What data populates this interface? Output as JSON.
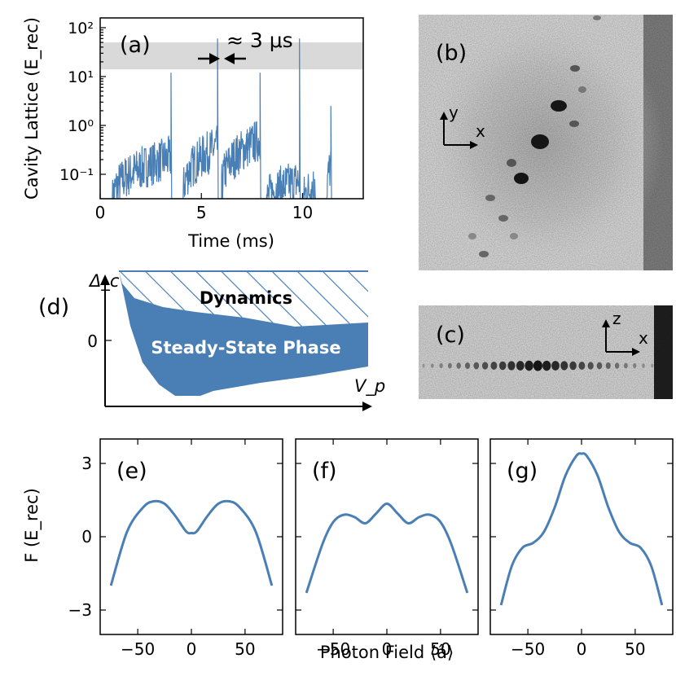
{
  "colors": {
    "accent": "#4a7fb5",
    "band": "#d9d9d9",
    "axis": "#000000"
  },
  "chart_data": [
    {
      "panel": "a",
      "type": "line",
      "panel_label": "(a)",
      "xlabel": "Time (ms)",
      "ylabel": "Cavity Lattice (E_rec)",
      "xlim": [
        0,
        13
      ],
      "ylim_log10": [
        -1.5,
        2.2
      ],
      "x_ticks": [
        0,
        5,
        10
      ],
      "x_tick_labels": [
        "0",
        "5",
        "10"
      ],
      "y_ticks_log10": [
        -1,
        0,
        1,
        2
      ],
      "y_tick_labels": [
        "10⁻¹",
        "10⁰",
        "10¹",
        "10²"
      ],
      "band_range": [
        14,
        50
      ],
      "annotation": "≈ 3 μs",
      "series": [
        {
          "name": "cavity lattice",
          "segments": [
            {
              "x_start": 0.6,
              "x_end": 3.5,
              "rise_from": 0.03,
              "rise_to": 0.3,
              "spike": 12
            },
            {
              "x_start": 4.1,
              "x_end": 5.8,
              "rise_from": 0.04,
              "rise_to": 0.5,
              "spike": 60
            },
            {
              "x_start": 6.0,
              "x_end": 7.9,
              "rise_from": 0.05,
              "rise_to": 0.7,
              "spike": 12
            },
            {
              "x_start": 8.2,
              "x_end": 9.85,
              "rise_from": 0.03,
              "rise_to": 0.1,
              "spike": 60
            },
            {
              "x_start": 10.0,
              "x_end": 10.6,
              "rise_from": 0.03,
              "rise_to": 0.08,
              "spike": 0.08
            },
            {
              "x_start": 11.2,
              "x_end": 11.4,
              "rise_from": 0.05,
              "rise_to": 0.2,
              "spike": 2.5
            }
          ]
        }
      ]
    },
    {
      "panel": "d",
      "type": "area",
      "panel_label": "(d)",
      "xlabel": "V_p",
      "ylabel": "Δ_c",
      "y_tick_labels": [
        "0"
      ],
      "regions": [
        {
          "name": "Dynamics",
          "style": "hatched"
        },
        {
          "name": "Steady-State Phase",
          "style": "filled"
        }
      ]
    },
    {
      "panel": "e",
      "type": "line",
      "panel_label": "(e)",
      "xlim": [
        -85,
        85
      ],
      "ylim": [
        -4,
        4
      ],
      "x_ticks": [
        -50,
        0,
        50
      ],
      "x_tick_labels": [
        "−50",
        "0",
        "50"
      ],
      "y_ticks": [
        -3,
        0,
        3
      ],
      "y_tick_labels": [
        "−3",
        "0",
        "3"
      ],
      "ylabel": "F (E_rec)",
      "x": [
        -75,
        -60,
        -45,
        -35,
        -25,
        -15,
        -5,
        0,
        5,
        15,
        25,
        35,
        45,
        60,
        75
      ],
      "y": [
        -2.0,
        0.2,
        1.2,
        1.45,
        1.35,
        0.85,
        0.22,
        0.15,
        0.22,
        0.85,
        1.35,
        1.45,
        1.2,
        0.2,
        -2.0
      ]
    },
    {
      "panel": "f",
      "type": "line",
      "panel_label": "(f)",
      "xlim": [
        -85,
        85
      ],
      "ylim": [
        -4,
        4
      ],
      "x_ticks": [
        -50,
        0,
        50
      ],
      "x_tick_labels": [
        "−50",
        "0",
        "50"
      ],
      "x": [
        -75,
        -60,
        -50,
        -40,
        -30,
        -20,
        -10,
        0,
        10,
        20,
        30,
        40,
        50,
        60,
        75
      ],
      "y": [
        -2.3,
        -0.3,
        0.6,
        0.9,
        0.8,
        0.55,
        0.95,
        1.35,
        0.95,
        0.55,
        0.8,
        0.9,
        0.6,
        -0.3,
        -2.3
      ]
    },
    {
      "panel": "g",
      "type": "line",
      "panel_label": "(g)",
      "xlim": [
        -85,
        85
      ],
      "ylim": [
        -4,
        4
      ],
      "x_ticks": [
        -50,
        0,
        50
      ],
      "x_tick_labels": [
        "−50",
        "0",
        "50"
      ],
      "x": [
        -75,
        -65,
        -55,
        -45,
        -35,
        -25,
        -15,
        -5,
        0,
        5,
        15,
        25,
        35,
        45,
        55,
        65,
        75
      ],
      "y": [
        -2.8,
        -1.2,
        -0.45,
        -0.25,
        0.2,
        1.2,
        2.5,
        3.3,
        3.4,
        3.3,
        2.5,
        1.2,
        0.2,
        -0.25,
        -0.45,
        -1.2,
        -2.8
      ]
    }
  ],
  "shared": {
    "xlabel_efg": "Photon Field ⟨â⟩"
  },
  "images": {
    "b": {
      "panel_label": "(b)",
      "axis_x": "x",
      "axis_y": "y"
    },
    "c": {
      "panel_label": "(c)",
      "axis_x": "x",
      "axis_z": "z"
    }
  }
}
